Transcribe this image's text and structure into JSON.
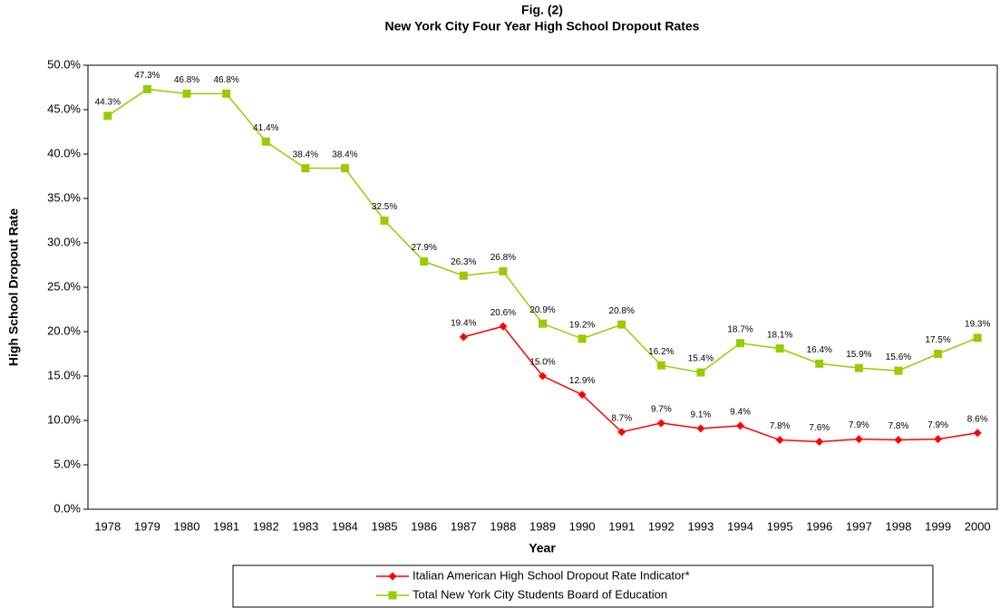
{
  "chart_data": {
    "type": "line",
    "title": "Fig. (2)",
    "subtitle": "New York City Four Year High School Dropout Rates",
    "x_label": "Year",
    "y_label": "High School Dropout Rate",
    "categories": [
      "1978",
      "1979",
      "1980",
      "1981",
      "1982",
      "1983",
      "1984",
      "1985",
      "1986",
      "1987",
      "1988",
      "1989",
      "1990",
      "1991",
      "1992",
      "1993",
      "1994",
      "1995",
      "1996",
      "1997",
      "1998",
      "1999",
      "2000"
    ],
    "series": [
      {
        "name": "Italian American High School Dropout Rate Indicator*",
        "color": "#ff0000",
        "marker": "diamond",
        "values": [
          null,
          null,
          null,
          null,
          null,
          null,
          null,
          null,
          null,
          19.4,
          20.6,
          15.0,
          12.9,
          8.7,
          9.7,
          9.1,
          9.4,
          7.8,
          7.6,
          7.9,
          7.8,
          7.9,
          8.6
        ],
        "value_labels": [
          null,
          null,
          null,
          null,
          null,
          null,
          null,
          null,
          null,
          "19.4%",
          "20.6%",
          "15.0%",
          "12.9%",
          "8.7%",
          "9.7%",
          "9.1%",
          "9.4%",
          "7.8%",
          "7.6%",
          "7.9%",
          "7.8%",
          "7.9%",
          "8.6%"
        ]
      },
      {
        "name": "Total New York City Students Board of Education",
        "color": "#99cc00",
        "marker": "square",
        "values": [
          44.3,
          47.3,
          46.8,
          46.8,
          41.4,
          38.4,
          38.4,
          32.5,
          27.9,
          26.3,
          26.8,
          20.9,
          19.2,
          20.8,
          16.2,
          15.4,
          18.7,
          18.1,
          16.4,
          15.9,
          15.6,
          17.5,
          19.3
        ],
        "value_labels": [
          "44.3%",
          "47.3%",
          "46.8%",
          "46.8%",
          "41.4%",
          "38.4%",
          "38.4%",
          "32.5%",
          "27.9%",
          "26.3%",
          "26.8%",
          "20.9%",
          "19.2%",
          "20.8%",
          "16.2%",
          "15.4%",
          "18.7%",
          "18.1%",
          "16.4%",
          "15.9%",
          "15.6%",
          "17.5%",
          "19.3%"
        ]
      }
    ],
    "ylim": [
      0,
      50
    ],
    "yticks": [
      {
        "value": 0,
        "label": "0.0%"
      },
      {
        "value": 5,
        "label": "5.0%"
      },
      {
        "value": 10,
        "label": "10.0%"
      },
      {
        "value": 15,
        "label": "15.0%"
      },
      {
        "value": 20,
        "label": "20.0%"
      },
      {
        "value": 25,
        "label": "25.0%"
      },
      {
        "value": 30,
        "label": "30.0%"
      },
      {
        "value": 35,
        "label": "35.0%"
      },
      {
        "value": 40,
        "label": "40.0%"
      },
      {
        "value": 45,
        "label": "45.0%"
      },
      {
        "value": 50,
        "label": "50.0%"
      }
    ],
    "grid": false,
    "legend": "bottom"
  }
}
